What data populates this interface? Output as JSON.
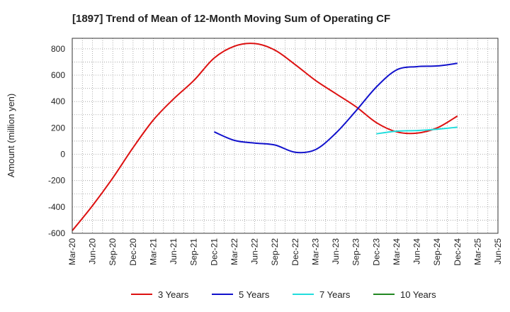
{
  "chart_data": {
    "type": "line",
    "title": "[1897]  Trend of Mean of 12-Month Moving Sum of Operating CF",
    "ylabel": "Amount (million yen)",
    "xlabel": "",
    "ylim": [
      -600,
      880
    ],
    "yticks": [
      -600,
      -400,
      -200,
      0,
      200,
      400,
      600,
      800
    ],
    "ytick_labels": [
      "-600",
      "-400",
      "-200",
      "0",
      "200",
      "400",
      "600",
      "800"
    ],
    "categories": [
      "Mar-20",
      "Jun-20",
      "Sep-20",
      "Dec-20",
      "Mar-21",
      "Jun-21",
      "Sep-21",
      "Dec-21",
      "Mar-22",
      "Jun-22",
      "Sep-22",
      "Dec-22",
      "Mar-23",
      "Jun-23",
      "Sep-23",
      "Dec-23",
      "Mar-24",
      "Jun-24",
      "Sep-24",
      "Dec-24",
      "Mar-25",
      "Jun-25"
    ],
    "grid": true,
    "legend_position": "bottom",
    "series": [
      {
        "name": "3 Years",
        "color": "#dd1111",
        "values": [
          -580,
          -390,
          -180,
          50,
          260,
          420,
          560,
          730,
          820,
          840,
          790,
          680,
          560,
          460,
          360,
          240,
          170,
          160,
          200,
          290,
          null,
          null
        ]
      },
      {
        "name": "5 Years",
        "color": "#1111cc",
        "values": [
          null,
          null,
          null,
          null,
          null,
          null,
          null,
          170,
          105,
          85,
          70,
          15,
          35,
          160,
          330,
          510,
          640,
          665,
          670,
          690,
          null,
          null
        ]
      },
      {
        "name": "7 Years",
        "color": "#22dddd",
        "values": [
          null,
          null,
          null,
          null,
          null,
          null,
          null,
          null,
          null,
          null,
          null,
          null,
          null,
          null,
          null,
          155,
          175,
          180,
          190,
          205,
          null,
          null
        ]
      },
      {
        "name": "10 Years",
        "color": "#228822",
        "values": [
          null,
          null,
          null,
          null,
          null,
          null,
          null,
          null,
          null,
          null,
          null,
          null,
          null,
          null,
          null,
          null,
          null,
          null,
          null,
          null,
          null,
          null
        ]
      }
    ]
  }
}
